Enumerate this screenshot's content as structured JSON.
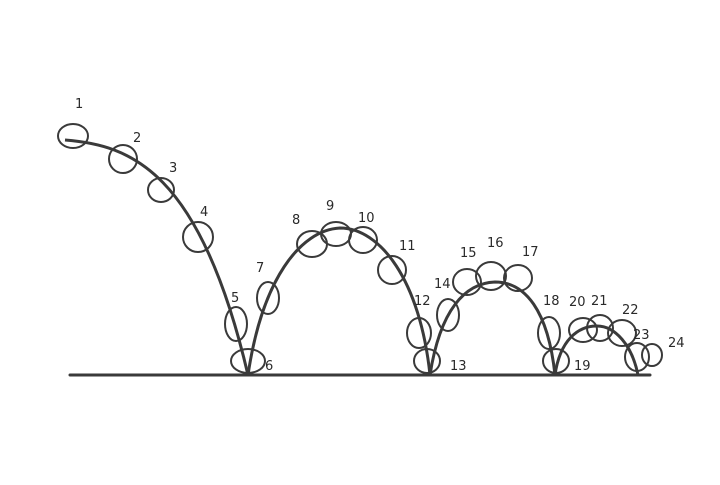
{
  "colors": {
    "ink": "#3a3a3a",
    "paper": "#ffffff"
  },
  "frames": [
    {
      "label": "1"
    },
    {
      "label": "2"
    },
    {
      "label": "3"
    },
    {
      "label": "4"
    },
    {
      "label": "5"
    },
    {
      "label": "6"
    },
    {
      "label": "7"
    },
    {
      "label": "8"
    },
    {
      "label": "9"
    },
    {
      "label": "10"
    },
    {
      "label": "11"
    },
    {
      "label": "12"
    },
    {
      "label": "13"
    },
    {
      "label": "14"
    },
    {
      "label": "15"
    },
    {
      "label": "16"
    },
    {
      "label": "17"
    },
    {
      "label": "18"
    },
    {
      "label": "19"
    },
    {
      "label": "20"
    },
    {
      "label": "21"
    },
    {
      "label": "22"
    },
    {
      "label": "23"
    },
    {
      "label": "24"
    }
  ]
}
